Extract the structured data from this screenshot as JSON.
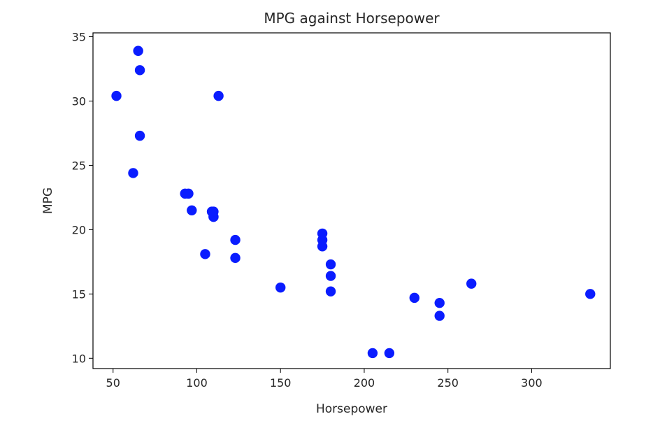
{
  "chart_data": {
    "type": "scatter",
    "title": "MPG against Horsepower",
    "xlabel": "Horsepower",
    "ylabel": "MPG",
    "xlim": [
      38,
      347
    ],
    "ylim": [
      9.2,
      35.3
    ],
    "xticks": [
      50,
      100,
      150,
      200,
      250,
      300
    ],
    "yticks": [
      10,
      15,
      20,
      25,
      30,
      35
    ],
    "grid": false,
    "marker_color": "#0a1cff",
    "series": [
      {
        "points": [
          {
            "x": 110,
            "y": 21.0
          },
          {
            "x": 110,
            "y": 21.0
          },
          {
            "x": 93,
            "y": 22.8
          },
          {
            "x": 110,
            "y": 21.4
          },
          {
            "x": 175,
            "y": 18.7
          },
          {
            "x": 105,
            "y": 18.1
          },
          {
            "x": 245,
            "y": 14.3
          },
          {
            "x": 62,
            "y": 24.4
          },
          {
            "x": 95,
            "y": 22.8
          },
          {
            "x": 123,
            "y": 19.2
          },
          {
            "x": 123,
            "y": 17.8
          },
          {
            "x": 180,
            "y": 16.4
          },
          {
            "x": 180,
            "y": 17.3
          },
          {
            "x": 180,
            "y": 15.2
          },
          {
            "x": 205,
            "y": 10.4
          },
          {
            "x": 215,
            "y": 10.4
          },
          {
            "x": 230,
            "y": 14.7
          },
          {
            "x": 66,
            "y": 32.4
          },
          {
            "x": 52,
            "y": 30.4
          },
          {
            "x": 65,
            "y": 33.9
          },
          {
            "x": 97,
            "y": 21.5
          },
          {
            "x": 150,
            "y": 15.5
          },
          {
            "x": 245,
            "y": 13.3
          },
          {
            "x": 175,
            "y": 19.2
          },
          {
            "x": 66,
            "y": 27.3
          },
          {
            "x": 113,
            "y": 30.4
          },
          {
            "x": 264,
            "y": 15.8
          },
          {
            "x": 175,
            "y": 19.7
          },
          {
            "x": 335,
            "y": 15.0
          },
          {
            "x": 109,
            "y": 21.4
          }
        ]
      }
    ]
  }
}
